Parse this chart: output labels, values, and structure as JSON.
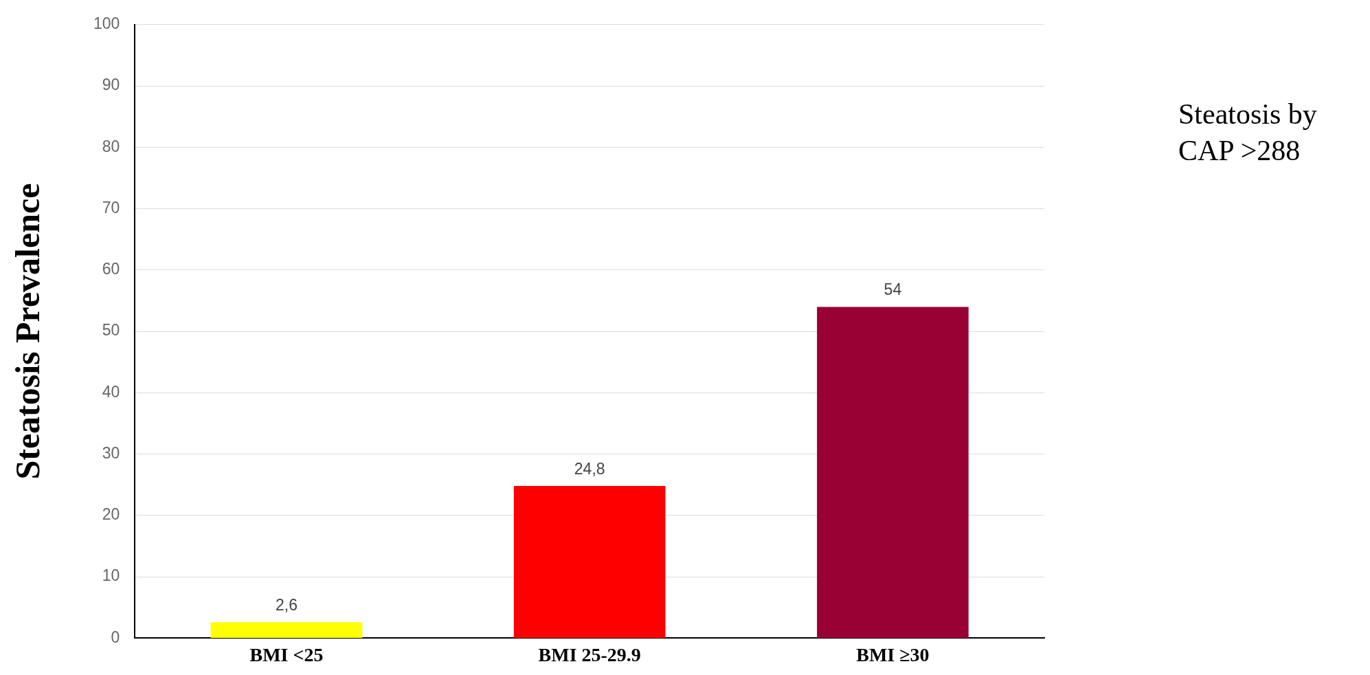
{
  "chart_data": {
    "type": "bar",
    "ylabel": "Steatosis Prevalence",
    "categories": [
      "BMI <25",
      "BMI 25-29.9",
      "BMI ≥30"
    ],
    "values": [
      2.6,
      24.8,
      54
    ],
    "colors": [
      "#ffff00",
      "#ff0000",
      "#990033"
    ],
    "value_labels": [
      "2,6",
      "24,8",
      "54"
    ],
    "ylim": [
      0,
      100
    ],
    "yticks": [
      0,
      10,
      20,
      30,
      40,
      50,
      60,
      70,
      80,
      90,
      100
    ],
    "grid": "y",
    "legend": false,
    "annotations": [
      "Steatosis by CAP >288"
    ]
  }
}
